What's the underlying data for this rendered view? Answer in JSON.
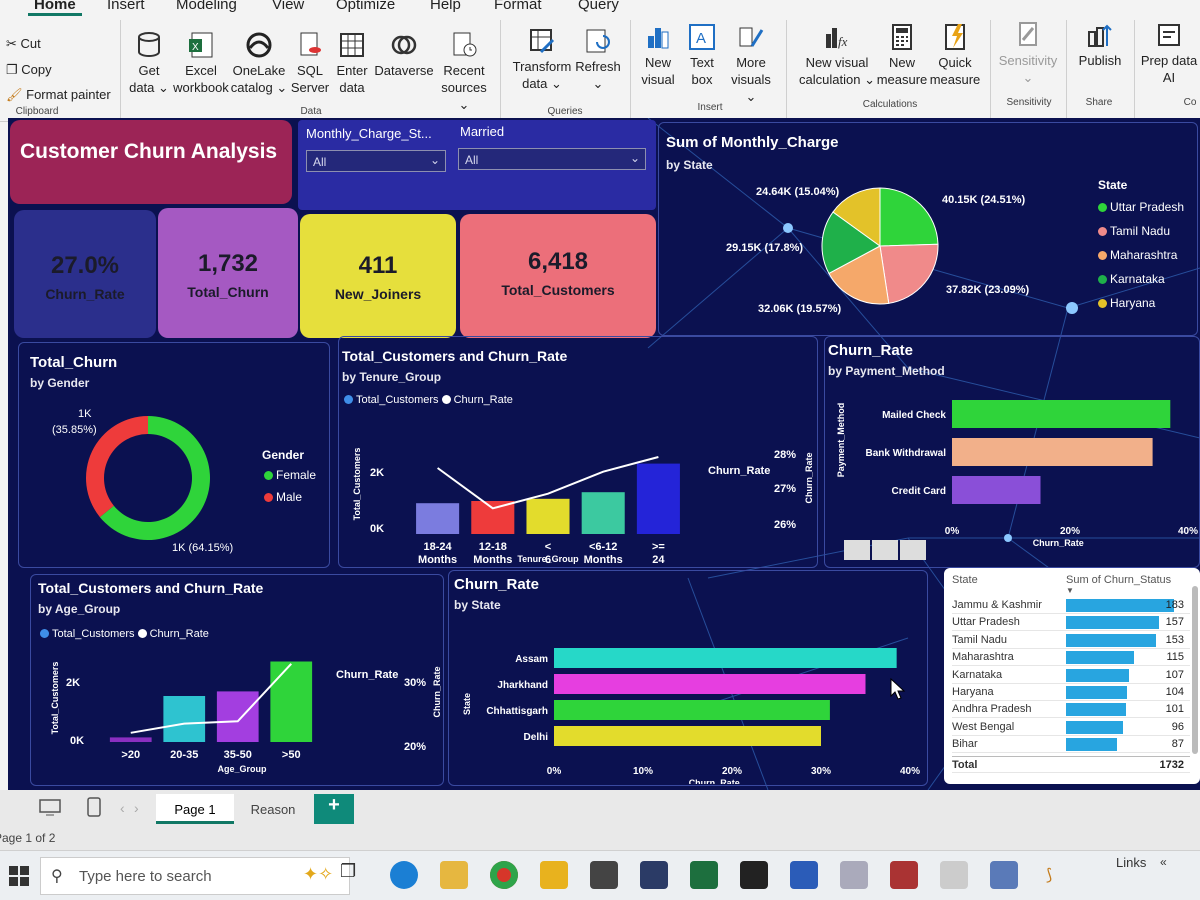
{
  "ribbon": {
    "tabs": [
      "Home",
      "Insert",
      "Modeling",
      "View",
      "Optimize",
      "Help",
      "Format",
      "Query"
    ],
    "clipboard": {
      "cut": "Cut",
      "copy": "Copy",
      "format_painter": "Format painter",
      "group": "Clipboard"
    },
    "data_group": {
      "items": [
        {
          "l1": "Get",
          "l2": "data ⌄"
        },
        {
          "l1": "Excel",
          "l2": "workbook"
        },
        {
          "l1": "OneLake",
          "l2": "catalog ⌄"
        },
        {
          "l1": "SQL",
          "l2": "Server"
        },
        {
          "l1": "Enter",
          "l2": "data"
        },
        {
          "l1": "Dataverse",
          "l2": ""
        },
        {
          "l1": "Recent",
          "l2": "sources ⌄"
        }
      ],
      "label": "Data"
    },
    "queries_group": {
      "items": [
        {
          "l1": "Transform",
          "l2": "data ⌄"
        },
        {
          "l1": "Refresh",
          "l2": "⌄"
        }
      ],
      "label": "Queries"
    },
    "insert_group": {
      "items": [
        {
          "l1": "New",
          "l2": "visual"
        },
        {
          "l1": "Text",
          "l2": "box"
        },
        {
          "l1": "More",
          "l2": "visuals ⌄"
        }
      ],
      "label": "Insert"
    },
    "calc_group": {
      "items": [
        {
          "l1": "New visual",
          "l2": "calculation ⌄"
        },
        {
          "l1": "New",
          "l2": "measure"
        },
        {
          "l1": "Quick",
          "l2": "measure"
        }
      ],
      "label": "Calculations"
    },
    "sensitivity": {
      "l1": "Sensitivity",
      "l2": "⌄",
      "label": "Sensitivity"
    },
    "share": {
      "l1": "Publish",
      "label": "Share"
    },
    "prep": {
      "l1": "Prep data",
      "l2": "AI",
      "label": "Co"
    }
  },
  "report": {
    "title": "Customer Churn Analysis",
    "slicers": [
      {
        "label": "Monthly_Charge_St...",
        "value": "All"
      },
      {
        "label": "Married",
        "value": "All"
      }
    ],
    "kpis": [
      {
        "value": "27.0%",
        "label": "Churn_Rate",
        "color": "#2b2f8c"
      },
      {
        "value": "1,732",
        "label": "Total_Churn",
        "color": "#a559c2"
      },
      {
        "value": "411",
        "label": "New_Joiners",
        "color": "#e6df3c"
      },
      {
        "value": "6,418",
        "label": "Total_Customers",
        "color": "#ec6f7a"
      }
    ],
    "pie": {
      "title": "Sum of Monthly_Charge",
      "subtitle": "by State",
      "legend_title": "State",
      "labels": [
        "40.15K (24.51%)",
        "37.82K (23.09%)",
        "32.06K (19.57%)",
        "29.15K (17.8%)",
        "24.64K (15.04%)"
      ]
    },
    "donut": {
      "title": "Total_Churn",
      "subtitle": "by Gender",
      "legend_title": "Gender",
      "label_top": "1K",
      "label_top2": "(35.85%)",
      "label_bottom": "1K (64.15%)"
    },
    "tenure": {
      "title": "Total_Customers and Churn_Rate",
      "subtitle": "by Tenure_Group",
      "legend": [
        "Total_Customers",
        "Churn_Rate"
      ],
      "y_left": [
        "2K",
        "0K"
      ],
      "y_right": [
        "28%",
        "27%",
        "26%"
      ],
      "y_left_title": "Total_Customers",
      "y_right_title": "Churn_Rate",
      "x_title": "Tenure_Group",
      "annot": "Churn_Rate"
    },
    "payment": {
      "title": "Churn_Rate",
      "subtitle": "by Payment_Method",
      "axis_title": "Payment_Method",
      "x_title": "Churn_Rate",
      "ticks": [
        "0%",
        "20%",
        "40%"
      ]
    },
    "age": {
      "title": "Total_Customers and Churn_Rate",
      "subtitle": "by Age_Group",
      "legend": [
        "Total_Customers",
        "Churn_Rate"
      ],
      "y_left": [
        "2K",
        "0K"
      ],
      "y_right": [
        "30%",
        "20%"
      ],
      "y_left_title": "Total_Customers",
      "y_right_title": "Churn_Rate",
      "x_title": "Age_Group",
      "annot": "Churn_Rate"
    },
    "state_bar": {
      "title": "Churn_Rate",
      "subtitle": "by State",
      "axis_title": "State",
      "x_title": "Churn_Rate",
      "ticks": [
        "0%",
        "10%",
        "20%",
        "30%",
        "40%"
      ]
    },
    "table": {
      "col1": "State",
      "col2": "Sum of Churn_Status",
      "total_label": "Total",
      "total_value": "1732"
    }
  },
  "chart_data": [
    {
      "type": "pie",
      "title": "Sum of Monthly_Charge",
      "categories": [
        "Uttar Pradesh",
        "Tamil Nadu",
        "Maharashtra",
        "Karnataka",
        "Haryana"
      ],
      "values": [
        40150,
        37820,
        32060,
        29150,
        24640
      ],
      "percent": [
        24.51,
        23.09,
        19.57,
        17.8,
        15.04
      ],
      "colors": [
        "#2fd43a",
        "#f08a8a",
        "#f5a86a",
        "#1fb04a",
        "#e3c229"
      ]
    },
    {
      "type": "pie",
      "title": "Total_Churn",
      "subtitle": "by Gender",
      "categories": [
        "Female",
        "Male"
      ],
      "percent": [
        64.15,
        35.85
      ],
      "colors": [
        "#2fd43a",
        "#ee3b3b"
      ]
    },
    {
      "type": "bar",
      "title": "Total_Customers and Churn_Rate",
      "subtitle": "by Tenure_Group",
      "xlabel": "Tenure_Group",
      "categories": [
        "18-24 Months",
        "12-18 Months",
        "< 6 Months",
        "<6-12 Months",
        ">= 24 Months"
      ],
      "series": [
        {
          "name": "Total_Customers",
          "values": [
            700,
            750,
            800,
            950,
            1600
          ]
        },
        {
          "name": "Churn_Rate",
          "values": [
            27.3,
            26.2,
            26.6,
            27.2,
            27.6
          ]
        }
      ],
      "ylim": [
        0,
        2500
      ],
      "y2lim": [
        25.5,
        28.5
      ],
      "colors": [
        "#7b7cdf",
        "#ee3b3b",
        "#e3dc2c",
        "#3cc9a0",
        "#2424d8"
      ]
    },
    {
      "type": "bar",
      "orientation": "horizontal",
      "title": "Churn_Rate",
      "subtitle": "by Payment_Method",
      "categories": [
        "Mailed Check",
        "Bank Withdrawal",
        "Credit Card"
      ],
      "values": [
        37,
        34,
        15
      ],
      "xlim": [
        0,
        40
      ],
      "colors": [
        "#2fd43a",
        "#f2b08a",
        "#8a4fd8"
      ]
    },
    {
      "type": "bar",
      "title": "Total_Customers and Churn_Rate",
      "subtitle": "by Age_Group",
      "xlabel": "Age_Group",
      "categories": [
        ">20",
        "20-35",
        "35-50",
        ">50"
      ],
      "series": [
        {
          "name": "Total_Customers",
          "values": [
            200,
            2000,
            2200,
            3500
          ]
        },
        {
          "name": "Churn_Rate",
          "values": [
            17,
            19,
            19.5,
            32
          ]
        }
      ],
      "ylim": [
        0,
        4000
      ],
      "y2lim": [
        15,
        35
      ],
      "colors": [
        "#8a2fc0",
        "#2ec3d0",
        "#a33ee0",
        "#2fd43a"
      ]
    },
    {
      "type": "bar",
      "orientation": "horizontal",
      "title": "Churn_Rate",
      "subtitle": "by State",
      "categories": [
        "Assam",
        "Jharkhand",
        "Chhattisgarh",
        "Delhi"
      ],
      "values": [
        38.5,
        35,
        31,
        30
      ],
      "xlim": [
        0,
        40
      ],
      "colors": [
        "#26d8c8",
        "#e63ee0",
        "#2fd43a",
        "#e3dc2c"
      ]
    },
    {
      "type": "table",
      "columns": [
        "State",
        "Sum of Churn_Status"
      ],
      "rows": [
        [
          "Jammu & Kashmir",
          183
        ],
        [
          "Uttar Pradesh",
          157
        ],
        [
          "Tamil Nadu",
          153
        ],
        [
          "Maharashtra",
          115
        ],
        [
          "Karnataka",
          107
        ],
        [
          "Haryana",
          104
        ],
        [
          "Andhra Pradesh",
          101
        ],
        [
          "West Bengal",
          96
        ],
        [
          "Bihar",
          87
        ]
      ],
      "total": 1732
    }
  ],
  "pages": {
    "tabs": [
      "Page 1",
      "Reason"
    ],
    "add": "+",
    "status": "Page 1 of 2"
  },
  "taskbar": {
    "search_placeholder": "Type here to search",
    "links": "Links"
  }
}
